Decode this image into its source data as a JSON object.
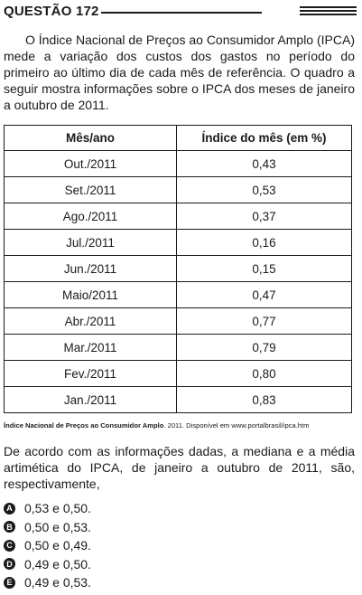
{
  "header": {
    "title": "QUESTÃO 172"
  },
  "intro": "O Índice Nacional de Preços ao Consumidor Amplo (IPCA) mede a variação dos custos dos gastos no período do primeiro ao último dia de cada mês de referência. O quadro a seguir mostra informações sobre o IPCA dos meses de janeiro a outubro de 2011.",
  "table": {
    "headers": [
      "Mês/ano",
      "Índice do mês (em %)"
    ],
    "rows": [
      [
        "Out./2011",
        "0,43"
      ],
      [
        "Set./2011",
        "0,53"
      ],
      [
        "Ago./2011",
        "0,37"
      ],
      [
        "Jul./2011",
        "0,16"
      ],
      [
        "Jun./2011",
        "0,15"
      ],
      [
        "Maio/2011",
        "0,47"
      ],
      [
        "Abr./2011",
        "0,77"
      ],
      [
        "Mar./2011",
        "0,79"
      ],
      [
        "Fev./2011",
        "0,80"
      ],
      [
        "Jan./2011",
        "0,83"
      ]
    ]
  },
  "source": {
    "bold": "Índice Nacional de Preços ao Consumidor Amplo",
    "rest": ". 2011. Disponível em www.portalbrasil/ipca.htm"
  },
  "question": "De acordo com as informações dadas, a mediana e a média artimética do IPCA, de janeiro a outubro de 2011, são, respectivamente,",
  "options": [
    {
      "letter": "A",
      "text": "0,53 e 0,50."
    },
    {
      "letter": "B",
      "text": "0,50 e 0,53."
    },
    {
      "letter": "C",
      "text": "0,50 e 0,49."
    },
    {
      "letter": "D",
      "text": "0,49 e 0,50."
    },
    {
      "letter": "E",
      "text": "0,49 e 0,53."
    }
  ]
}
